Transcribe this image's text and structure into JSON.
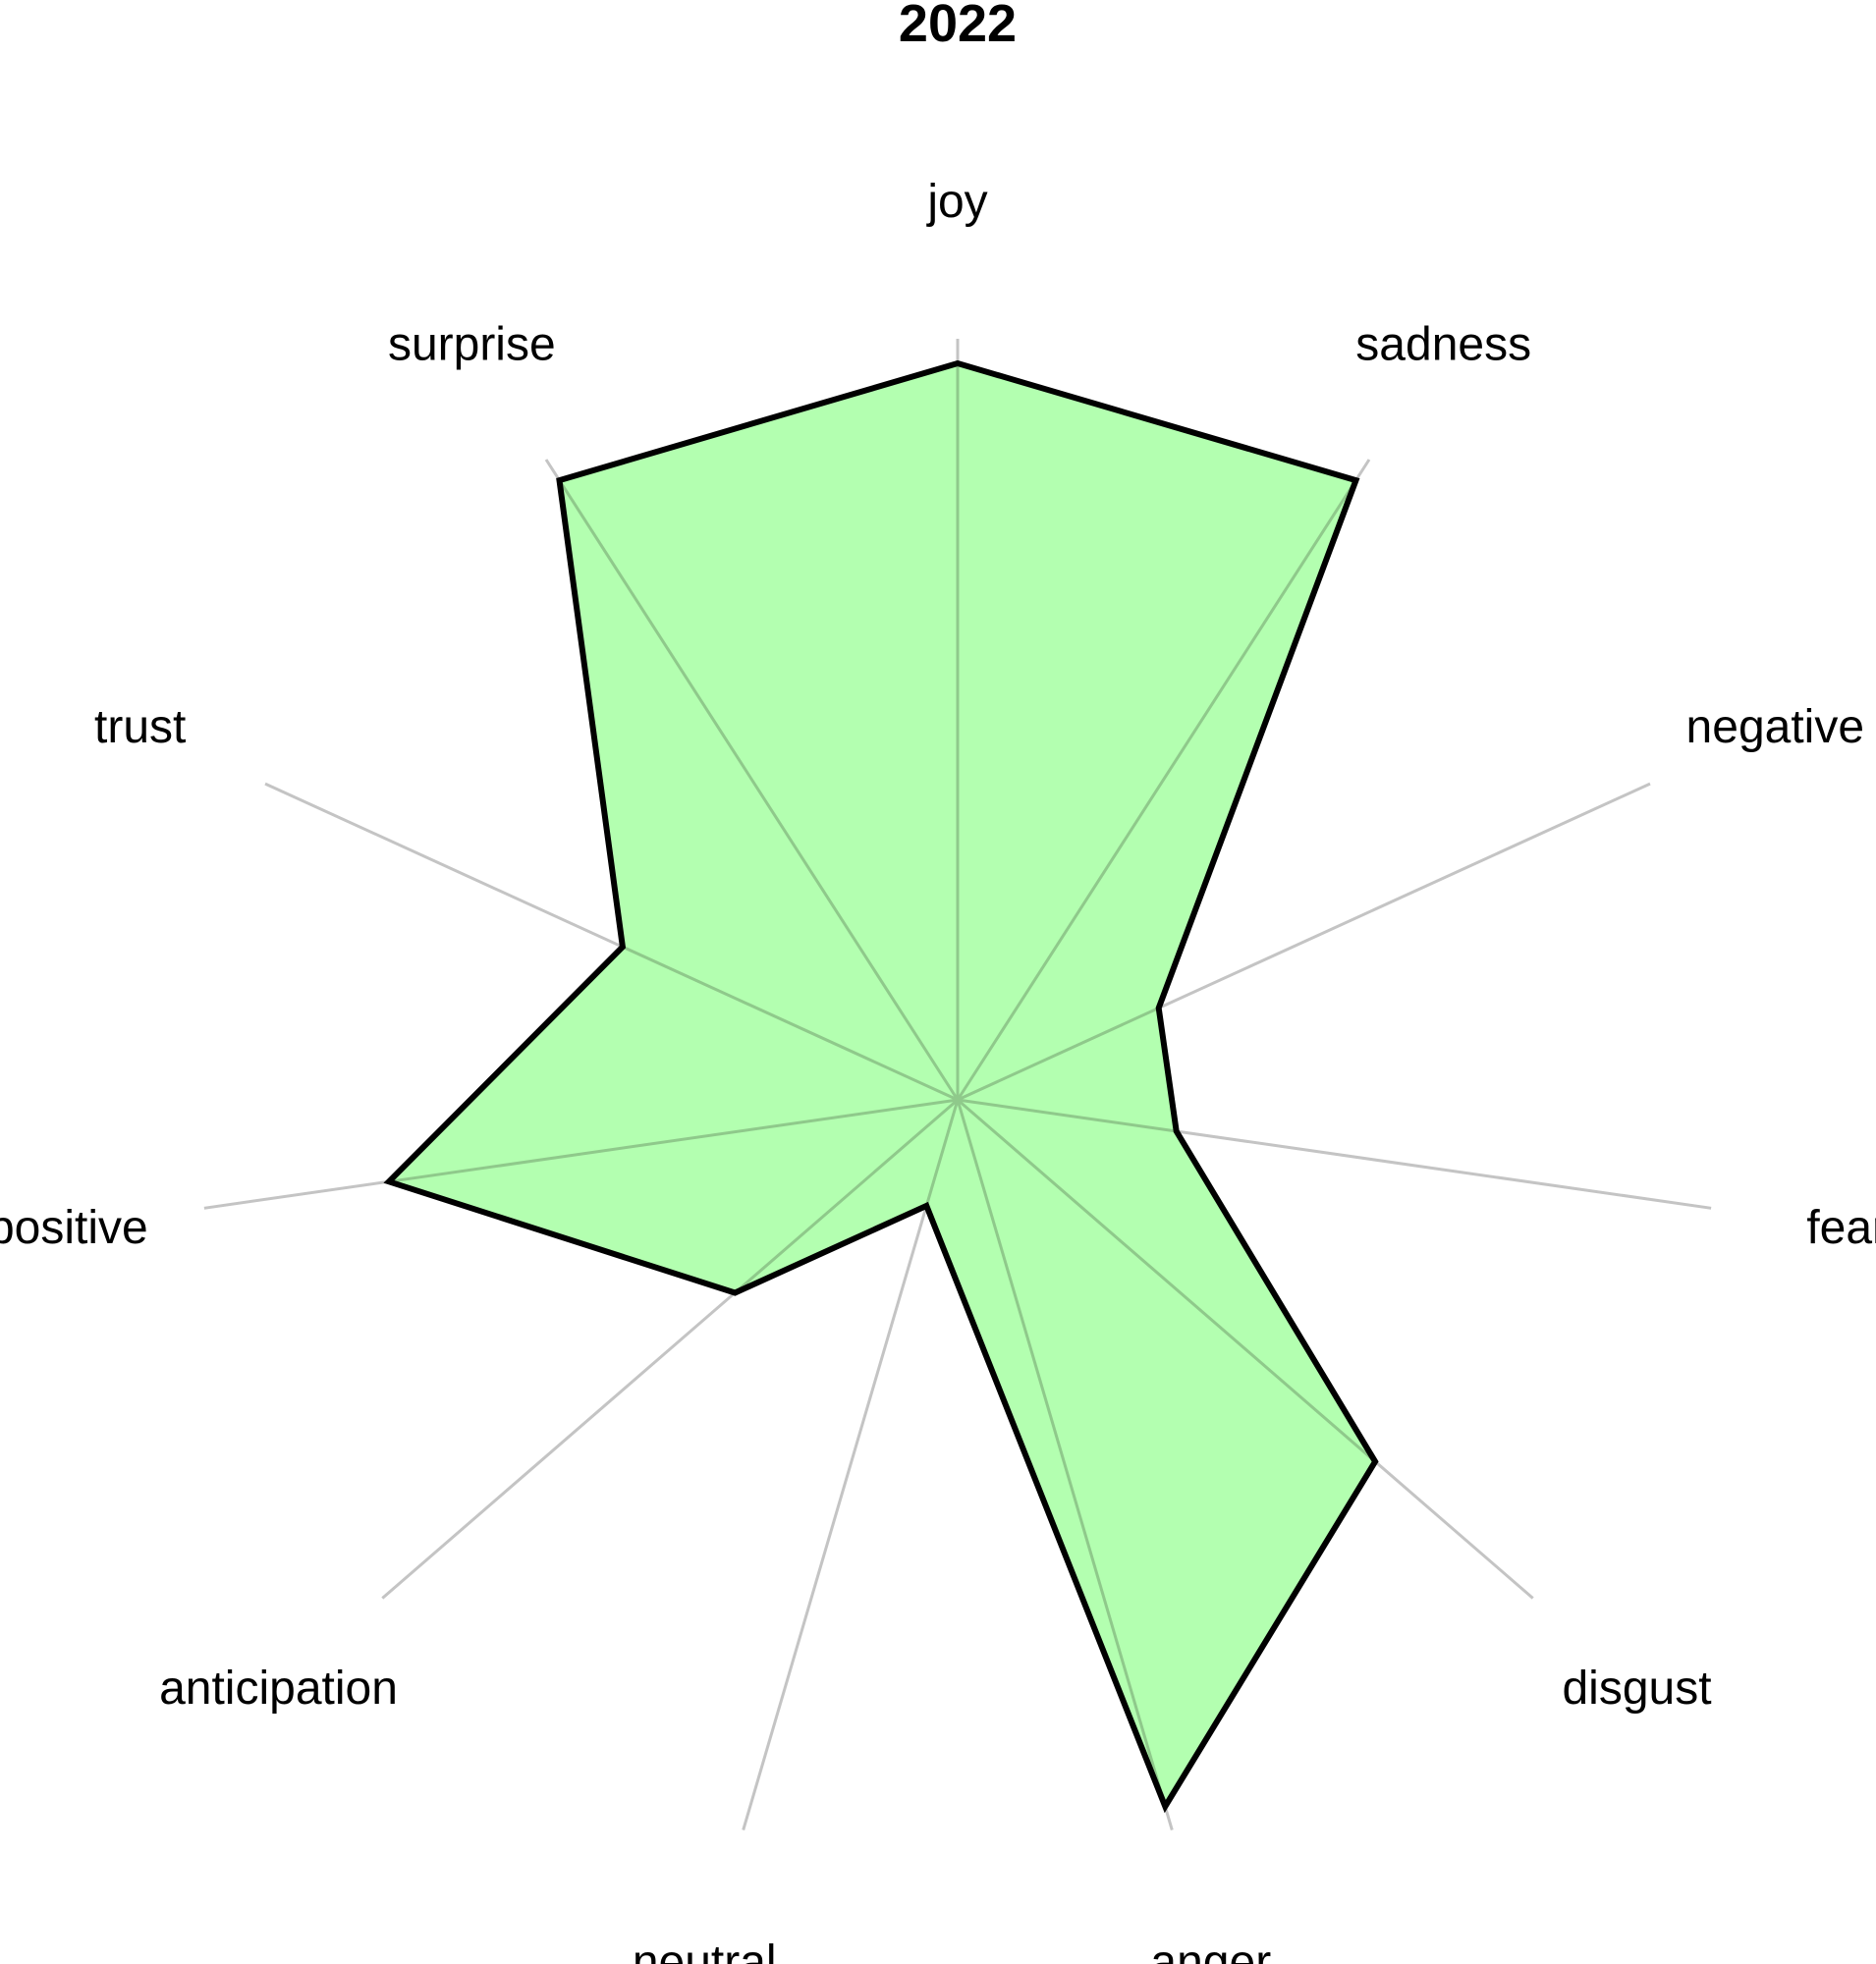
{
  "chart_data": {
    "type": "radar",
    "title": "2022",
    "categories": [
      "joy",
      "sadness",
      "negative",
      "fear",
      "disgust",
      "anger",
      "neutral",
      "anticipation",
      "positive",
      "trust",
      "surprise"
    ],
    "values": [
      100,
      100,
      30,
      30,
      75,
      100,
      15,
      40,
      78,
      50,
      100
    ],
    "ylim": [
      0,
      100
    ],
    "grid": false,
    "colors": {
      "fill": "#b3ffb0",
      "outline": "#000000",
      "spoke": "#c4c4c4"
    }
  }
}
